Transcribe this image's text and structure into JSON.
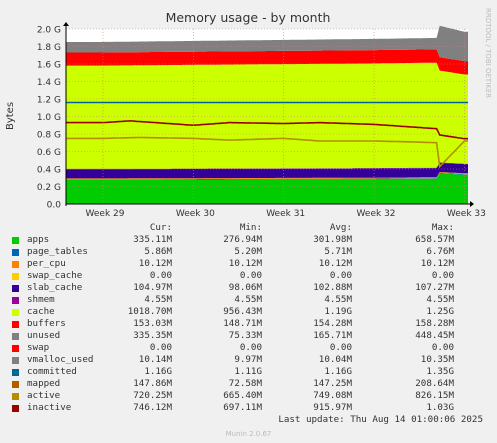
{
  "chart_data": {
    "type": "area",
    "title": "Memory usage - by month",
    "ylabel": "Bytes",
    "y_unit": "bytes",
    "ylim": [
      0,
      2000000000
    ],
    "y_ticks": [
      {
        "value": 0,
        "label": "0.0"
      },
      {
        "value": 200000000,
        "label": "0.2 G"
      },
      {
        "value": 400000000,
        "label": "0.4 G"
      },
      {
        "value": 600000000,
        "label": "0.6 G"
      },
      {
        "value": 800000000,
        "label": "0.8 G"
      },
      {
        "value": 1000000000,
        "label": "1.0 G"
      },
      {
        "value": 1200000000,
        "label": "1.2 G"
      },
      {
        "value": 1400000000,
        "label": "1.4 G"
      },
      {
        "value": 1600000000,
        "label": "1.6 G"
      },
      {
        "value": 1800000000,
        "label": "1.8 G"
      },
      {
        "value": 2000000000,
        "label": "2.0 G"
      }
    ],
    "x_ticks": [
      "Week 29",
      "Week 30",
      "Week 31",
      "Week 32",
      "Week 33"
    ],
    "grid": true,
    "stacked_series": [
      {
        "name": "apps",
        "color": "#00cc00",
        "points": [
          [
            0,
            277000000.0
          ],
          [
            3,
            285000000.0
          ],
          [
            3.7,
            290000000.0
          ],
          [
            3.72,
            350000000.0
          ],
          [
            4,
            335000000.0
          ]
        ]
      },
      {
        "name": "page_tables",
        "color": "#0066b3",
        "points": [
          [
            0,
            5200000.0
          ],
          [
            4,
            5860000.0
          ]
        ]
      },
      {
        "name": "per_cpu",
        "color": "#ff8000",
        "points": [
          [
            0,
            10120000.0
          ],
          [
            4,
            10120000.0
          ]
        ]
      },
      {
        "name": "swap_cache",
        "color": "#ffcc00",
        "points": [
          [
            0,
            0
          ],
          [
            4,
            0
          ]
        ]
      },
      {
        "name": "slab_cache",
        "color": "#330099",
        "points": [
          [
            0,
            105000000.0
          ],
          [
            4,
            105000000.0
          ]
        ]
      },
      {
        "name": "shmem",
        "color": "#990099",
        "points": [
          [
            0,
            4550000.0
          ],
          [
            4,
            4550000.0
          ]
        ]
      },
      {
        "name": "cache",
        "color": "#ccff00",
        "points": [
          [
            0,
            1180000000.0
          ],
          [
            3.7,
            1200000000.0
          ],
          [
            3.72,
            1050000000.0
          ],
          [
            4,
            1020000000.0
          ]
        ]
      },
      {
        "name": "buffers",
        "color": "#ff0000",
        "points": [
          [
            0,
            150000000.0
          ],
          [
            4,
            153000000.0
          ]
        ]
      },
      {
        "name": "unused",
        "color": "#808080",
        "points": [
          [
            0,
            120000000.0
          ],
          [
            3.7,
            130000000.0
          ],
          [
            3.72,
            360000000.0
          ],
          [
            4,
            335000000.0
          ]
        ]
      }
    ],
    "line_series": [
      {
        "name": "committed",
        "color": "#006699",
        "points": [
          [
            0,
            1160000000.0
          ],
          [
            4,
            1160000000.0
          ]
        ]
      },
      {
        "name": "active",
        "color": "#b38f00",
        "points": [
          [
            0,
            750000000.0
          ],
          [
            0.4,
            760000000.0
          ],
          [
            1,
            750000000.0
          ],
          [
            1.4,
            730000000.0
          ],
          [
            2,
            750000000.0
          ],
          [
            2.4,
            720000000.0
          ],
          [
            3,
            720000000.0
          ],
          [
            3.4,
            710000000.0
          ],
          [
            3.7,
            700000000.0
          ],
          [
            3.72,
            420000000.0
          ],
          [
            4,
            720000000.0
          ]
        ]
      },
      {
        "name": "inactive",
        "color": "#990000",
        "points": [
          [
            0,
            930000000.0
          ],
          [
            0.3,
            950000000.0
          ],
          [
            1,
            900000000.0
          ],
          [
            1.4,
            930000000.0
          ],
          [
            2,
            920000000.0
          ],
          [
            2.4,
            930000000.0
          ],
          [
            3,
            910000000.0
          ],
          [
            3.7,
            860000000.0
          ],
          [
            3.72,
            790000000.0
          ],
          [
            4,
            746000000.0
          ]
        ]
      }
    ]
  },
  "legend": {
    "headers": [
      "Cur:",
      "Min:",
      "Avg:",
      "Max:"
    ],
    "rows": [
      {
        "name": "apps",
        "color": "#00cc00",
        "cur": "335.11M",
        "min": "276.94M",
        "avg": "301.98M",
        "max": "658.57M"
      },
      {
        "name": "page_tables",
        "color": "#0066b3",
        "cur": "5.86M",
        "min": "5.20M",
        "avg": "5.71M",
        "max": "6.76M"
      },
      {
        "name": "per_cpu",
        "color": "#ff8000",
        "cur": "10.12M",
        "min": "10.12M",
        "avg": "10.12M",
        "max": "10.12M"
      },
      {
        "name": "swap_cache",
        "color": "#ffcc00",
        "cur": "0.00",
        "min": "0.00",
        "avg": "0.00",
        "max": "0.00"
      },
      {
        "name": "slab_cache",
        "color": "#330099",
        "cur": "104.97M",
        "min": "98.06M",
        "avg": "102.88M",
        "max": "107.27M"
      },
      {
        "name": "shmem",
        "color": "#990099",
        "cur": "4.55M",
        "min": "4.55M",
        "avg": "4.55M",
        "max": "4.55M"
      },
      {
        "name": "cache",
        "color": "#ccff00",
        "cur": "1018.70M",
        "min": "956.43M",
        "avg": "1.19G",
        "max": "1.25G"
      },
      {
        "name": "buffers",
        "color": "#ff0000",
        "cur": "153.03M",
        "min": "148.71M",
        "avg": "154.28M",
        "max": "158.28M"
      },
      {
        "name": "unused",
        "color": "#808080",
        "cur": "335.35M",
        "min": "75.33M",
        "avg": "165.71M",
        "max": "448.45M"
      },
      {
        "name": "swap",
        "color": "#ff0000",
        "cur": "0.00",
        "min": "0.00",
        "avg": "0.00",
        "max": "0.00"
      },
      {
        "name": "vmalloc_used",
        "color": "#808080",
        "cur": "10.14M",
        "min": "9.97M",
        "avg": "10.04M",
        "max": "10.35M"
      },
      {
        "name": "committed",
        "color": "#006699",
        "cur": "1.16G",
        "min": "1.11G",
        "avg": "1.16G",
        "max": "1.35G"
      },
      {
        "name": "mapped",
        "color": "#b35a00",
        "cur": "147.86M",
        "min": "72.58M",
        "avg": "147.25M",
        "max": "208.64M"
      },
      {
        "name": "active",
        "color": "#b38f00",
        "cur": "720.25M",
        "min": "665.40M",
        "avg": "749.08M",
        "max": "826.15M"
      },
      {
        "name": "inactive",
        "color": "#990000",
        "cur": "746.12M",
        "min": "697.11M",
        "avg": "915.97M",
        "max": "1.03G"
      }
    ]
  },
  "last_update": "Last update: Thu Aug 14 01:00:06 2025",
  "footer": "Munin 2.0.67",
  "sidebar_text": "RRDTOOL / TOBI OETIKER"
}
